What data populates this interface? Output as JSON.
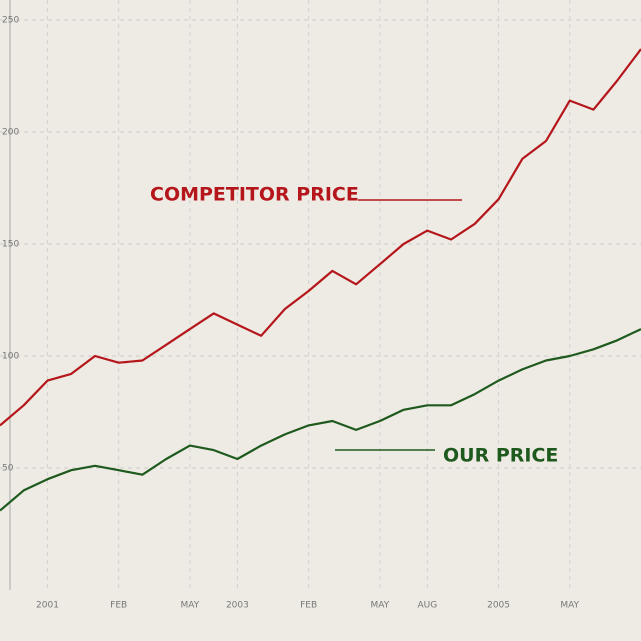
{
  "chart_data": {
    "type": "line",
    "categories": [
      null,
      null,
      "2001",
      null,
      null,
      "FEB",
      null,
      null,
      "MAY",
      null,
      "2003",
      null,
      null,
      "FEB",
      null,
      null,
      "MAY",
      null,
      "AUG",
      null,
      null,
      "2005",
      null,
      null,
      "MAY",
      null,
      null,
      null
    ],
    "series": [
      {
        "name": "COMPETITOR PRICE",
        "color": "#b5161b",
        "values": [
          69,
          78,
          89,
          92,
          100,
          97,
          98,
          105,
          112,
          119,
          114,
          109,
          121,
          129,
          138,
          132,
          141,
          150,
          156,
          152,
          159,
          170,
          188,
          196,
          214,
          210,
          223,
          237
        ]
      },
      {
        "name": "OUR PRICE",
        "color": "#1e5a1e",
        "values": [
          31,
          40,
          45,
          49,
          51,
          49,
          47,
          54,
          60,
          58,
          54,
          60,
          65,
          69,
          71,
          67,
          71,
          76,
          78,
          78,
          83,
          89,
          94,
          98,
          100,
          103,
          107,
          112
        ]
      }
    ],
    "ylim": [
      0,
      250
    ],
    "yticks": [
      50,
      100,
      150,
      200,
      250
    ],
    "grid": true
  }
}
